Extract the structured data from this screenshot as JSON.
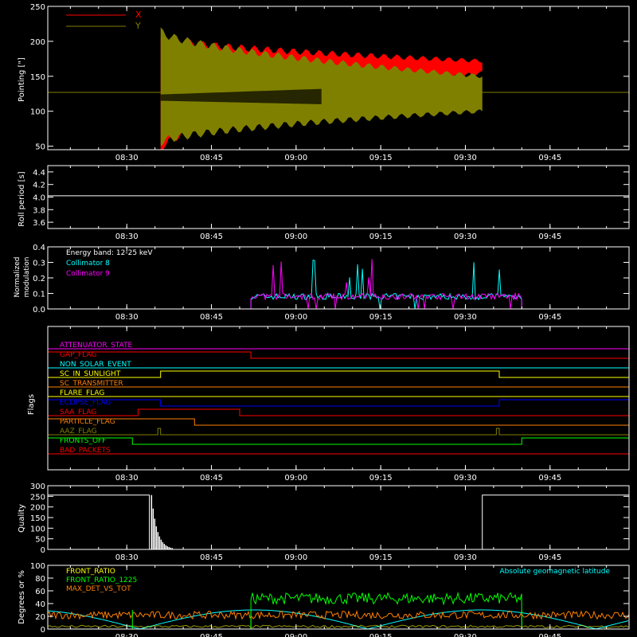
{
  "time_ticks": [
    "08:30",
    "08:45",
    "09:00",
    "09:15",
    "09:30",
    "09:45"
  ],
  "colors": {
    "axes": "#ffffff",
    "red": "#ff0000",
    "olive": "#808000",
    "cyan": "#00ffff",
    "magenta": "#ff00ff",
    "orange": "#ff8000",
    "green": "#00ff00",
    "yellow": "#ffff00",
    "blue": "#0000ff"
  },
  "chart_data": [
    {
      "id": "pointing",
      "type": "line",
      "ylabel": "Pointing [\"]",
      "x_range": [
        "08:16",
        "09:59"
      ],
      "ylim": [
        45,
        250
      ],
      "yticks": [
        50,
        100,
        150,
        200,
        250
      ],
      "legend": [
        "X",
        "Y"
      ],
      "series": [
        {
          "name": "X",
          "color": "#ff0000",
          "baseline": 127,
          "start": "08:36",
          "end": "09:33",
          "envelope_start": [
            45,
            205
          ],
          "envelope_end": [
            155,
            172
          ]
        },
        {
          "name": "Y",
          "color": "#808000",
          "baseline": 127,
          "start": "08:36",
          "end": "09:33",
          "envelope_start": [
            55,
            215
          ],
          "envelope_end": [
            100,
            150
          ]
        }
      ]
    },
    {
      "id": "roll-period",
      "type": "line",
      "ylabel": "Roll period [s]",
      "ylim": [
        3.5,
        4.5
      ],
      "yticks": [
        3.6,
        3.8,
        4.0,
        4.2,
        4.4
      ],
      "series": [
        {
          "name": "roll period",
          "color": "#ffffff",
          "value": 4.02
        }
      ]
    },
    {
      "id": "modulation",
      "type": "line",
      "ylabel": "Normalized modulation",
      "ylim": [
        0,
        0.4
      ],
      "yticks": [
        0.0,
        0.1,
        0.2,
        0.3,
        0.4
      ],
      "annotation": "Energy band: 12-25 keV",
      "legend": [
        "Collimator 8",
        "Collimator 9"
      ],
      "active_range": [
        "08:52",
        "09:40"
      ],
      "series": [
        {
          "name": "Collimator 8",
          "color": "#00ffff",
          "typical": 0.08,
          "max": 0.33
        },
        {
          "name": "Collimator 9",
          "color": "#ff00ff",
          "typical": 0.08,
          "max": 0.33
        }
      ]
    },
    {
      "id": "flags",
      "type": "line",
      "ylabel": "Flags",
      "flags": [
        {
          "name": "ATTENUATOR_STATE",
          "color": "#ff00ff",
          "steps": []
        },
        {
          "name": "GAP_FLAG",
          "color": "#ff0000",
          "steps": [
            {
              "from": "08:16",
              "to": "08:52",
              "on": true
            }
          ]
        },
        {
          "name": "NON_SOLAR_EVENT",
          "color": "#00ffff",
          "steps": []
        },
        {
          "name": "SC_IN_SUNLIGHT",
          "color": "#ffff00",
          "steps": [
            {
              "from": "08:36",
              "to": "09:36",
              "on": true
            }
          ]
        },
        {
          "name": "SC_TRANSMITTER",
          "color": "#ff8000",
          "steps": []
        },
        {
          "name": "FLARE_FLAG",
          "color": "#ffff00",
          "steps": []
        },
        {
          "name": "ECLIPSE_FLAG",
          "color": "#0000ff",
          "steps": [
            {
              "from": "08:16",
              "to": "08:36",
              "on": true
            },
            {
              "from": "09:36",
              "to": "09:59",
              "on": true
            }
          ]
        },
        {
          "name": "SAA_FLAG",
          "color": "#ff0000",
          "steps": [
            {
              "from": "08:32",
              "to": "08:50",
              "on": true
            }
          ]
        },
        {
          "name": "PARTICLE_FLAG",
          "color": "#ff8000",
          "steps": [
            {
              "from": "08:16",
              "to": "08:42",
              "on": true
            }
          ]
        },
        {
          "name": "AAZ_FLAG",
          "color": "#808000",
          "steps": [
            {
              "from": "08:35.5",
              "to": "08:36",
              "on": true
            },
            {
              "from": "09:35.5",
              "to": "09:36",
              "on": true
            }
          ]
        },
        {
          "name": "FRONTS_OFF",
          "color": "#00ff00",
          "steps": [
            {
              "from": "08:16",
              "to": "08:31",
              "on": true
            },
            {
              "from": "09:40",
              "to": "09:59",
              "on": true
            }
          ]
        },
        {
          "name": "BAD_PACKETS",
          "color": "#ff0000",
          "steps": []
        }
      ]
    },
    {
      "id": "quality",
      "type": "line",
      "ylabel": "Quality",
      "ylim": [
        0,
        300
      ],
      "yticks": [
        0,
        50,
        100,
        150,
        200,
        250,
        300
      ],
      "series": [
        {
          "name": "quality",
          "color": "#ffffff",
          "segments": [
            {
              "from": "08:16",
              "to": "08:34",
              "value": 256
            },
            {
              "from": "09:33",
              "to": "09:59",
              "value": 256
            }
          ]
        }
      ]
    },
    {
      "id": "geomagnetic",
      "type": "line",
      "ylabel": "Degrees or %",
      "ylim": [
        0,
        100
      ],
      "yticks": [
        0,
        20,
        40,
        60,
        80,
        100
      ],
      "legend": [
        "FRONT_RATIO",
        "FRONT_RATIO_1225",
        "MAX_DET_VS_TOT"
      ],
      "right_label": "Absolute geomagnetic latitude",
      "series": [
        {
          "name": "FRONT_RATIO",
          "color": "#ffff00"
        },
        {
          "name": "FRONT_RATIO_1225",
          "color": "#00ff00",
          "active_range": [
            "08:52",
            "09:40"
          ],
          "typical": 48
        },
        {
          "name": "MAX_DET_VS_TOT",
          "color": "#ff8000",
          "typical": 22
        },
        {
          "name": "Absolute geomagnetic latitude",
          "color": "#00ffff",
          "min": 0,
          "max": 30
        }
      ]
    }
  ]
}
